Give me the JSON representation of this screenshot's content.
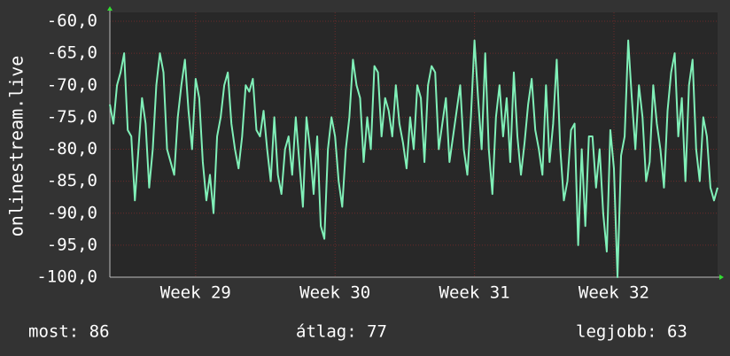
{
  "chart_data": {
    "type": "line",
    "y_label": "onlinestream.live",
    "color": "#80f0b8",
    "grid": true,
    "values": [
      -73,
      -76,
      -70,
      -68,
      -65,
      -77,
      -78,
      -88,
      -80,
      -72,
      -76,
      -86,
      -80,
      -70,
      -65,
      -68,
      -80,
      -82,
      -84,
      -75,
      -70,
      -66,
      -74,
      -80,
      -69,
      -72,
      -82,
      -88,
      -84,
      -90,
      -78,
      -75,
      -70,
      -68,
      -76,
      -80,
      -83,
      -78,
      -70,
      -71,
      -69,
      -77,
      -78,
      -74,
      -80,
      -85,
      -75,
      -84,
      -87,
      -80,
      -78,
      -84,
      -75,
      -82,
      -89,
      -75,
      -80,
      -87,
      -78,
      -92,
      -94,
      -80,
      -75,
      -78,
      -85,
      -89,
      -80,
      -75,
      -66,
      -70,
      -72,
      -82,
      -75,
      -80,
      -67,
      -68,
      -78,
      -72,
      -74,
      -78,
      -70,
      -76,
      -79,
      -83,
      -75,
      -80,
      -70,
      -72,
      -82,
      -70,
      -67,
      -68,
      -80,
      -76,
      -72,
      -82,
      -78,
      -74,
      -70,
      -80,
      -84,
      -75,
      -63,
      -72,
      -80,
      -65,
      -80,
      -87,
      -75,
      -70,
      -78,
      -72,
      -82,
      -68,
      -78,
      -84,
      -79,
      -73,
      -69,
      -77,
      -80,
      -84,
      -70,
      -82,
      -76,
      -66,
      -80,
      -88,
      -85,
      -77,
      -76,
      -95,
      -80,
      -92,
      -78,
      -78,
      -86,
      -80,
      -90,
      -96,
      -77,
      -83,
      -100,
      -81,
      -78,
      -63,
      -72,
      -80,
      -70,
      -75,
      -85,
      -82,
      -70,
      -76,
      -80,
      -86,
      -74,
      -68,
      -65,
      -78,
      -72,
      -85,
      -70,
      -66,
      -80,
      -85,
      -75,
      -78,
      -86,
      -88,
      -86
    ],
    "xlim": [
      0,
      170
    ],
    "xticks": [
      {
        "value": 24,
        "label": "Week 29"
      },
      {
        "value": 63,
        "label": "Week 30"
      },
      {
        "value": 102,
        "label": "Week 31"
      },
      {
        "value": 141,
        "label": "Week 32"
      }
    ],
    "ylim": [
      -100,
      -60
    ],
    "yticks": [
      {
        "value": -60,
        "label": "-60,0"
      },
      {
        "value": -65,
        "label": "-65,0"
      },
      {
        "value": -70,
        "label": "-70,0"
      },
      {
        "value": -75,
        "label": "-75,0"
      },
      {
        "value": -80,
        "label": "-80,0"
      },
      {
        "value": -85,
        "label": "-85,0"
      },
      {
        "value": -90,
        "label": "-90,0"
      },
      {
        "value": -95,
        "label": "-95,0"
      },
      {
        "value": -100,
        "label": "-100,0"
      }
    ],
    "footer": [
      "most: 86",
      "átlag: 77",
      "legjobb: 63"
    ]
  }
}
